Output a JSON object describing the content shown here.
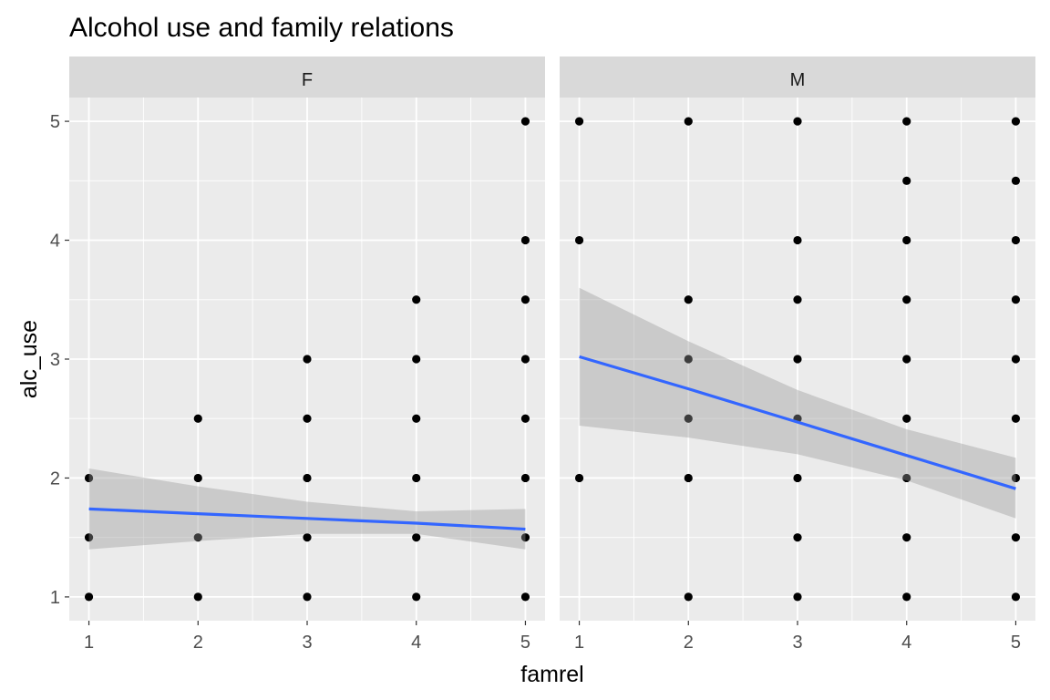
{
  "chart_data": {
    "type": "scatter",
    "title": "Alcohol use and family relations",
    "xlabel": "famrel",
    "ylabel": "alc_use",
    "xlim": [
      0.82,
      5.18
    ],
    "ylim": [
      0.8,
      5.2
    ],
    "x_ticks": [
      1,
      2,
      3,
      4,
      5
    ],
    "y_ticks": [
      1,
      2,
      3,
      4,
      5
    ],
    "grid": true,
    "point_color": "#000000",
    "line_color": "#3366ff",
    "band_color": "#999999",
    "panel_background": "#ebebeb",
    "strip_background": "#d9d9d9",
    "panels": [
      {
        "label": "F",
        "points": [
          [
            1,
            1
          ],
          [
            1,
            1.5
          ],
          [
            1,
            2
          ],
          [
            2,
            1
          ],
          [
            2,
            1.5
          ],
          [
            2,
            2
          ],
          [
            2,
            2.5
          ],
          [
            3,
            1
          ],
          [
            3,
            1.5
          ],
          [
            3,
            2
          ],
          [
            3,
            2.5
          ],
          [
            3,
            3
          ],
          [
            4,
            1
          ],
          [
            4,
            1.5
          ],
          [
            4,
            2
          ],
          [
            4,
            2.5
          ],
          [
            4,
            3
          ],
          [
            4,
            3.5
          ],
          [
            5,
            1
          ],
          [
            5,
            1.5
          ],
          [
            5,
            2
          ],
          [
            5,
            2.5
          ],
          [
            5,
            3
          ],
          [
            5,
            3.5
          ],
          [
            5,
            4
          ],
          [
            5,
            5
          ]
        ],
        "smooth": {
          "x": [
            1,
            2,
            3,
            4,
            5
          ],
          "fit": [
            1.74,
            1.7,
            1.66,
            1.62,
            1.57
          ],
          "lower": [
            1.4,
            1.47,
            1.53,
            1.53,
            1.4
          ],
          "upper": [
            2.08,
            1.93,
            1.8,
            1.72,
            1.74
          ]
        }
      },
      {
        "label": "M",
        "points": [
          [
            1,
            2
          ],
          [
            1,
            4
          ],
          [
            1,
            5
          ],
          [
            2,
            1
          ],
          [
            2,
            2
          ],
          [
            2,
            2.5
          ],
          [
            2,
            3
          ],
          [
            2,
            3.5
          ],
          [
            2,
            5
          ],
          [
            3,
            1
          ],
          [
            3,
            1.5
          ],
          [
            3,
            2
          ],
          [
            3,
            2.5
          ],
          [
            3,
            3
          ],
          [
            3,
            3.5
          ],
          [
            3,
            4
          ],
          [
            3,
            5
          ],
          [
            4,
            1
          ],
          [
            4,
            1.5
          ],
          [
            4,
            2
          ],
          [
            4,
            2.5
          ],
          [
            4,
            3
          ],
          [
            4,
            3.5
          ],
          [
            4,
            4
          ],
          [
            4,
            4.5
          ],
          [
            4,
            5
          ],
          [
            5,
            1
          ],
          [
            5,
            1.5
          ],
          [
            5,
            2
          ],
          [
            5,
            2.5
          ],
          [
            5,
            3
          ],
          [
            5,
            3.5
          ],
          [
            5,
            4
          ],
          [
            5,
            4.5
          ],
          [
            5,
            5
          ]
        ],
        "smooth": {
          "x": [
            1,
            2,
            3,
            4,
            5
          ],
          "fit": [
            3.02,
            2.75,
            2.47,
            2.19,
            1.91
          ],
          "lower": [
            2.44,
            2.34,
            2.2,
            1.98,
            1.66
          ],
          "upper": [
            3.6,
            3.15,
            2.74,
            2.41,
            2.17
          ]
        }
      }
    ]
  }
}
